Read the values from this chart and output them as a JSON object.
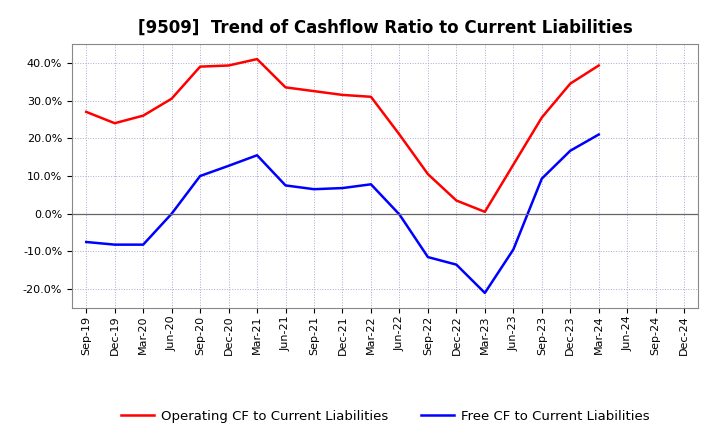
{
  "title": "[9509]  Trend of Cashflow Ratio to Current Liabilities",
  "x_labels": [
    "Sep-19",
    "Dec-19",
    "Mar-20",
    "Jun-20",
    "Sep-20",
    "Dec-20",
    "Mar-21",
    "Jun-21",
    "Sep-21",
    "Dec-21",
    "Mar-22",
    "Jun-22",
    "Sep-22",
    "Dec-22",
    "Mar-23",
    "Jun-23",
    "Sep-23",
    "Dec-23",
    "Mar-24",
    "Jun-24",
    "Sep-24",
    "Dec-24"
  ],
  "operating_cf_full": [
    0.27,
    0.24,
    0.26,
    0.305,
    0.39,
    0.393,
    0.41,
    0.335,
    0.325,
    0.315,
    0.31,
    0.21,
    0.105,
    0.035,
    0.005,
    0.13,
    0.255,
    0.345,
    0.393,
    null,
    null,
    null
  ],
  "free_cf_full": [
    -0.075,
    -0.082,
    -0.082,
    0.0,
    0.1,
    0.127,
    0.155,
    0.075,
    0.065,
    0.068,
    0.078,
    -0.002,
    -0.115,
    -0.135,
    -0.21,
    -0.095,
    0.093,
    0.167,
    0.21,
    null,
    null,
    null
  ],
  "operating_color": "#ff0000",
  "free_color": "#0000ff",
  "ylim": [
    -0.25,
    0.45
  ],
  "yticks": [
    -0.2,
    -0.1,
    0.0,
    0.1,
    0.2,
    0.3,
    0.4
  ],
  "background_color": "#ffffff",
  "plot_bg_color": "#ffffff",
  "grid_color": "#aaaacc",
  "title_fontsize": 12,
  "legend_fontsize": 9.5,
  "tick_fontsize": 8
}
